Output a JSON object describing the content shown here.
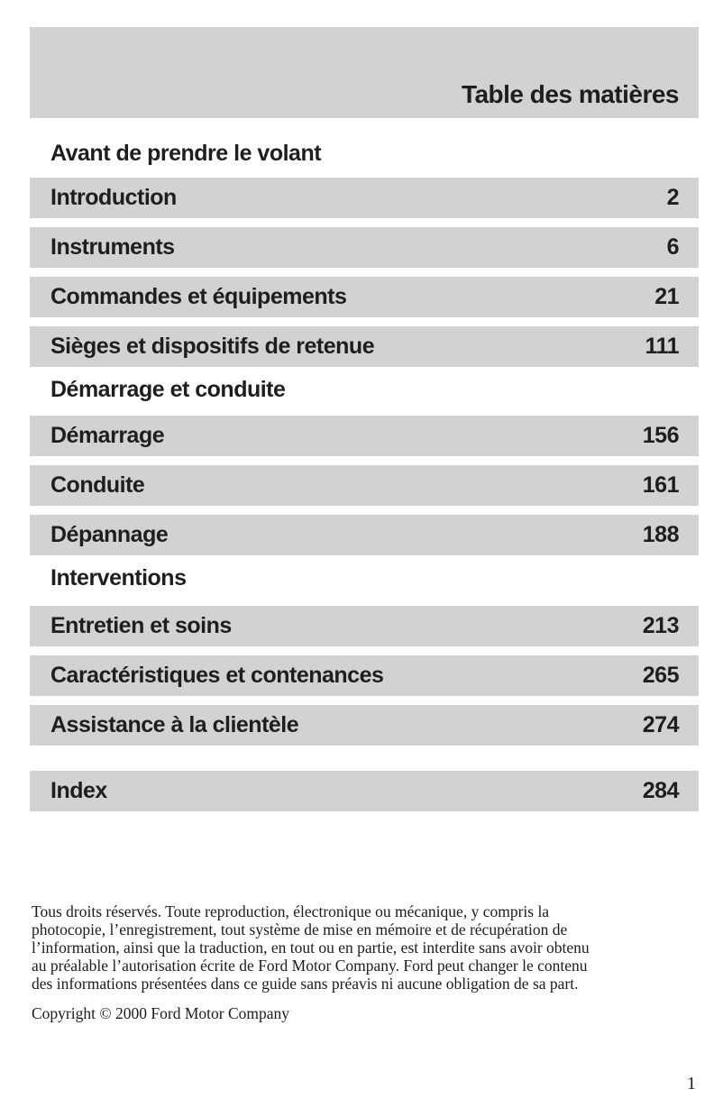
{
  "header": {
    "title": "Table des matières"
  },
  "toc": {
    "sections": [
      {
        "heading": "Avant de prendre le volant",
        "items": [
          {
            "label": "Introduction",
            "page": "2"
          },
          {
            "label": "Instruments",
            "page": "6"
          },
          {
            "label": "Commandes et équipements",
            "page": "21"
          },
          {
            "label": "Sièges et dispositifs de retenue",
            "page": "111"
          }
        ]
      },
      {
        "heading": "Démarrage et conduite",
        "items": [
          {
            "label": "Démarrage",
            "page": "156"
          },
          {
            "label": "Conduite",
            "page": "161"
          },
          {
            "label": "Dépannage",
            "page": "188"
          }
        ]
      },
      {
        "heading": "Interventions",
        "items": [
          {
            "label": "Entretien et soins",
            "page": "213"
          },
          {
            "label": "Caractéristiques et contenances",
            "page": "265"
          },
          {
            "label": "Assistance à la clientèle",
            "page": "274"
          }
        ]
      }
    ],
    "index": {
      "label": "Index",
      "page": "284"
    }
  },
  "footer": {
    "legal_lines": [
      "Tous droits réservés. Toute reproduction, électronique ou mécanique, y compris la",
      "photocopie, l’enregistrement, tout système de mise en mémoire et de récupération de",
      "l’information, ainsi que la traduction, en tout ou en partie, est interdite sans avoir obtenu",
      "au préalable l’autorisation écrite de Ford Motor Company. Ford peut changer le contenu",
      "des informations présentées dans ce guide sans préavis ni aucune obligation de sa part."
    ],
    "copyright": "Copyright © 2000 Ford Motor Company",
    "page_number": "1"
  },
  "colors": {
    "band_gray": "#d2d2d2",
    "text": "#1e1e1e"
  }
}
